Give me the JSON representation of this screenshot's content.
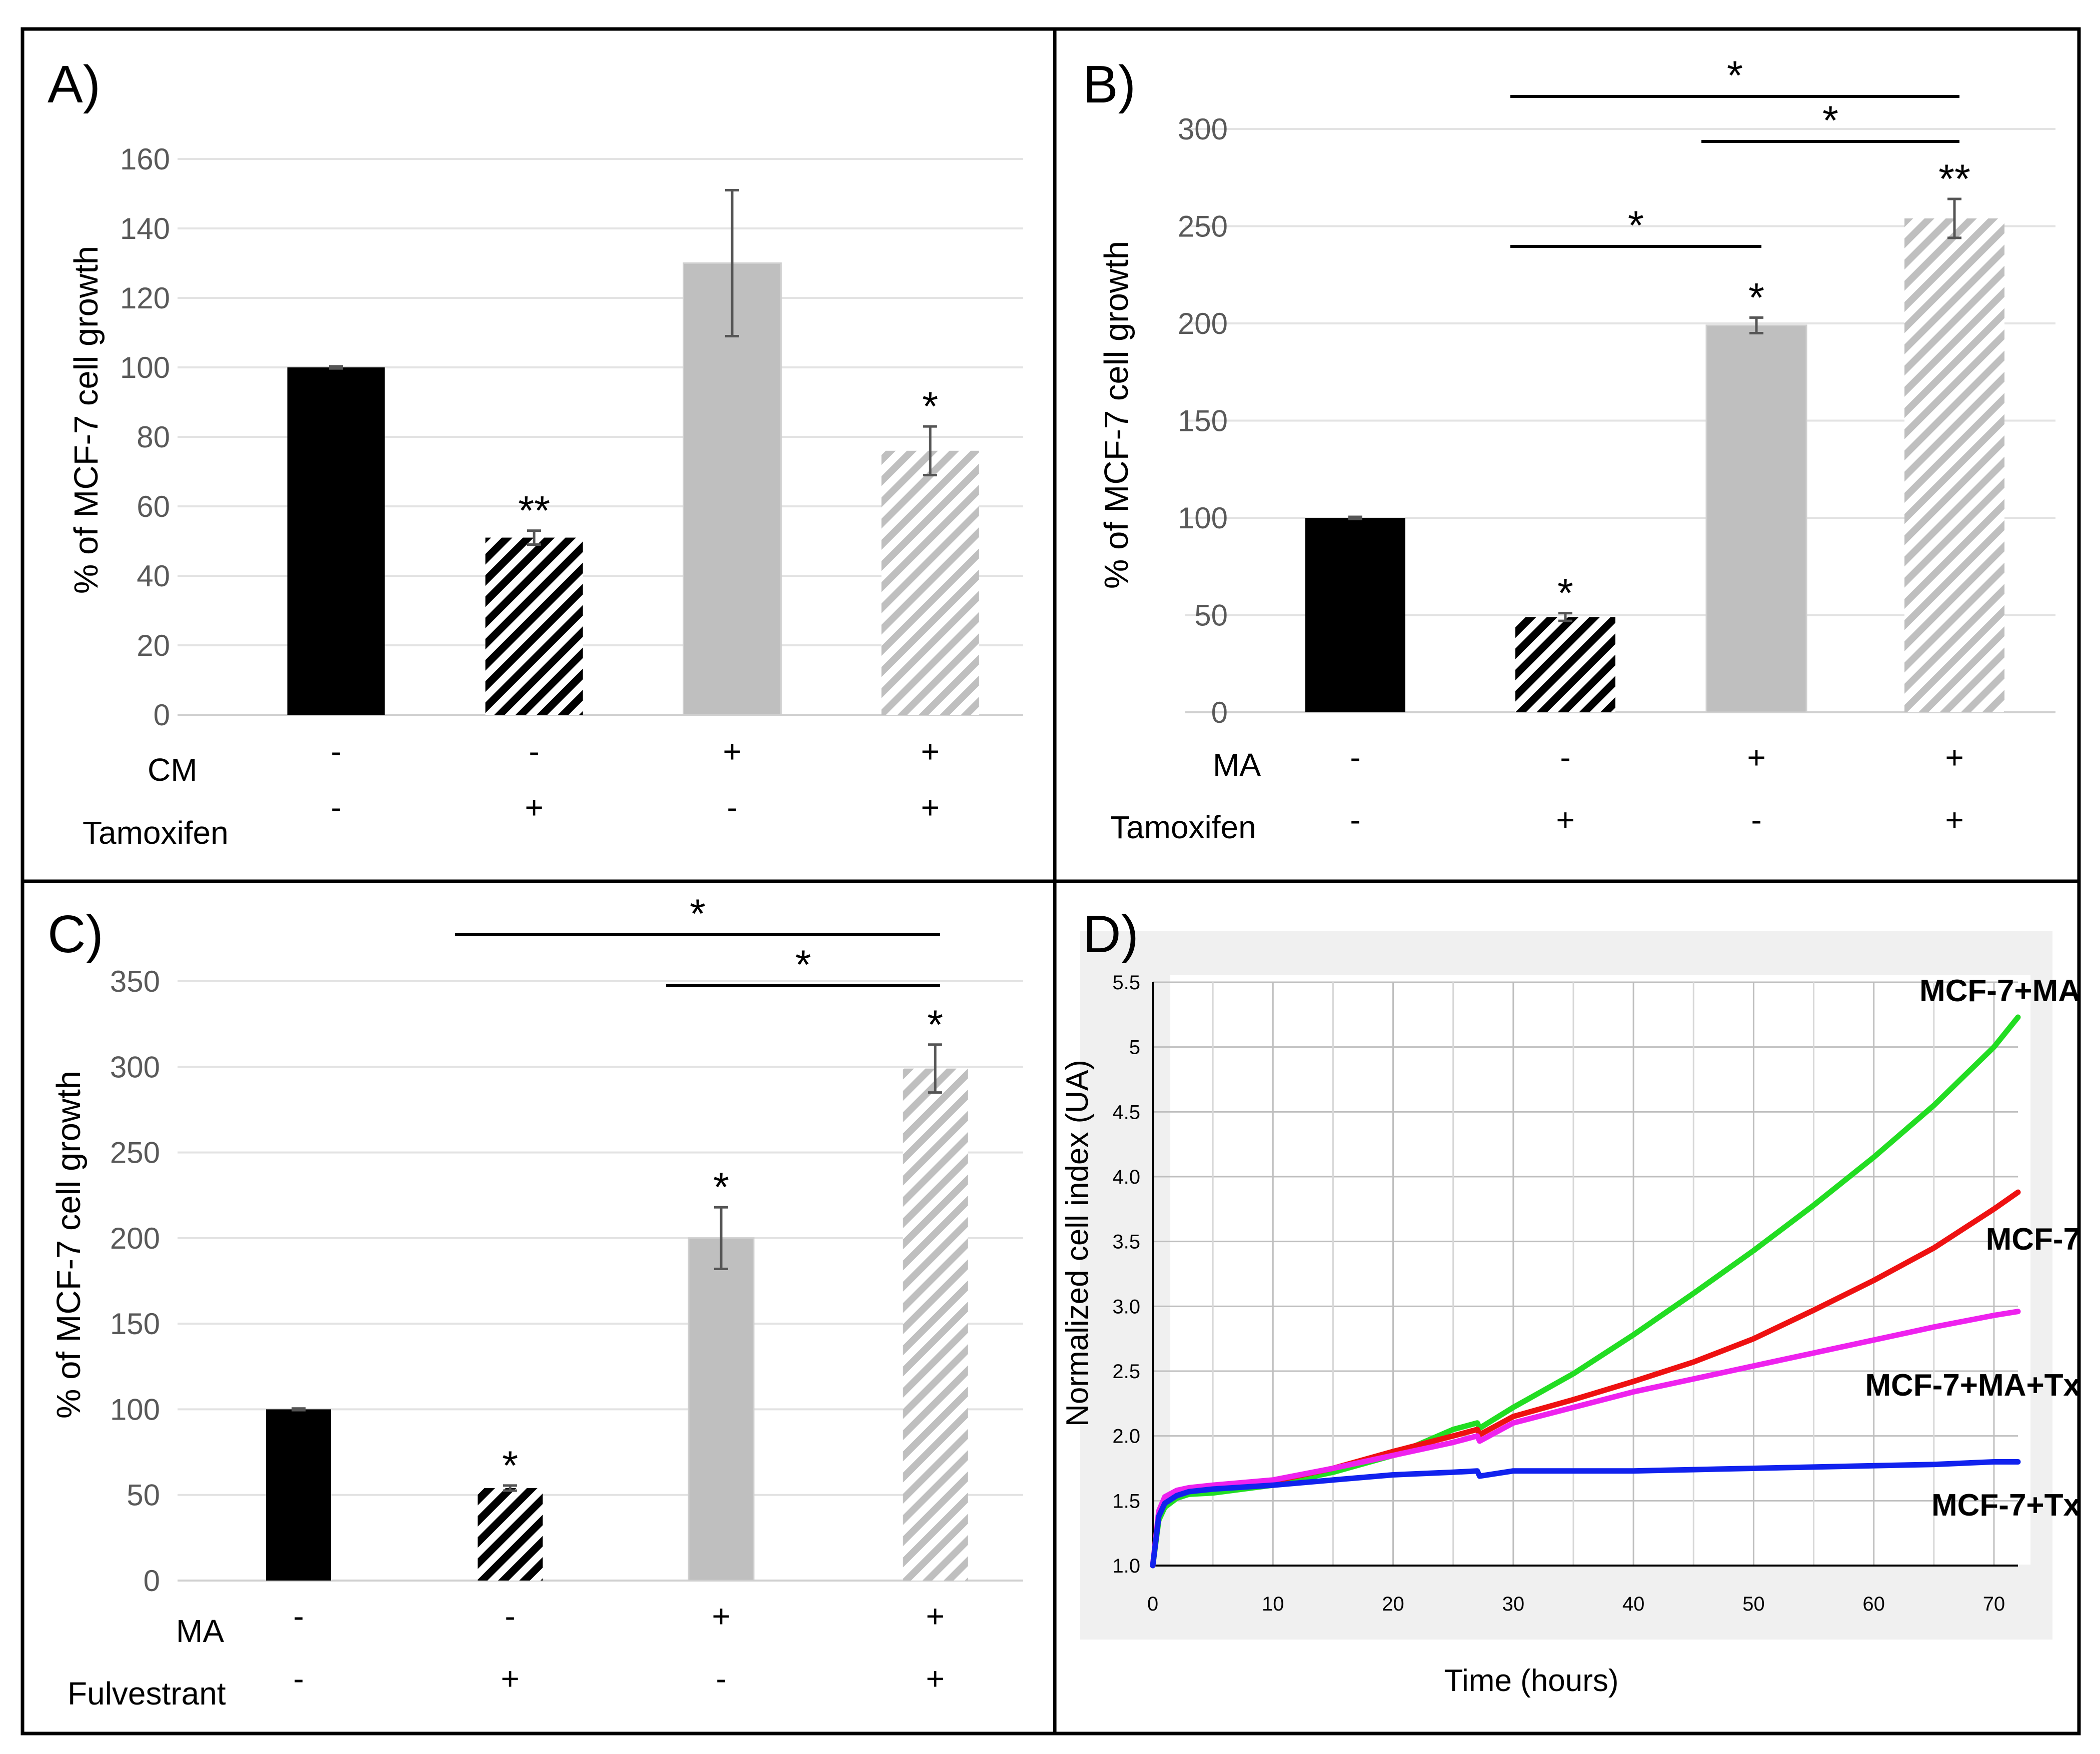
{
  "chart_data": [
    {
      "panel": "A)",
      "type": "bar",
      "ylabel": "% of MCF-7 cell growth",
      "ylim": [
        0,
        160
      ],
      "yticks": [
        0,
        20,
        40,
        60,
        80,
        100,
        120,
        140,
        160
      ],
      "grid": true,
      "bars": [
        {
          "value": 100,
          "error": 0.3,
          "style": "solid-black",
          "sig": ""
        },
        {
          "value": 51,
          "error": 2,
          "style": "hatch-black",
          "sig": "**"
        },
        {
          "value": 130,
          "error": 21,
          "style": "solid-gray",
          "sig": ""
        },
        {
          "value": 76,
          "error": 7,
          "style": "hatch-gray",
          "sig": "*"
        }
      ],
      "rows": [
        {
          "label": "CM",
          "signs": [
            "-",
            "-",
            "+",
            "+"
          ]
        },
        {
          "label": "Tamoxifen",
          "signs": [
            "-",
            "+",
            "-",
            "+"
          ]
        }
      ],
      "brackets": []
    },
    {
      "panel": "B)",
      "type": "bar",
      "ylabel": "% of MCF-7 cell growth",
      "ylim": [
        0,
        300
      ],
      "yticks": [
        0,
        50,
        100,
        150,
        200,
        250,
        300
      ],
      "grid": true,
      "bars": [
        {
          "value": 100,
          "error": 0.5,
          "style": "solid-black",
          "sig": ""
        },
        {
          "value": 49,
          "error": 2,
          "style": "hatch-black",
          "sig": "*"
        },
        {
          "value": 199,
          "error": 4,
          "style": "solid-gray",
          "sig": "*"
        },
        {
          "value": 254,
          "error": 10,
          "style": "hatch-gray",
          "sig": "**"
        }
      ],
      "rows": [
        {
          "label": "MA",
          "signs": [
            "-",
            "-",
            "+",
            "+"
          ]
        },
        {
          "label": "Tamoxifen",
          "signs": [
            "-",
            "+",
            "-",
            "+"
          ]
        }
      ],
      "brackets": [
        {
          "from": 1,
          "to": 3,
          "label": "*"
        },
        {
          "from": 2,
          "to": 3,
          "label": "*"
        },
        {
          "from": 1,
          "to": 2,
          "label": "*"
        }
      ]
    },
    {
      "panel": "C)",
      "type": "bar",
      "ylabel": "% of MCF-7 cell growth",
      "ylim": [
        0,
        350
      ],
      "yticks": [
        0,
        50,
        100,
        150,
        200,
        250,
        300,
        350
      ],
      "grid": true,
      "bars": [
        {
          "value": 100,
          "error": 0.5,
          "style": "solid-black",
          "sig": ""
        },
        {
          "value": 54,
          "error": 1.5,
          "style": "hatch-black",
          "sig": "*"
        },
        {
          "value": 200,
          "error": 18,
          "style": "solid-gray",
          "sig": "*"
        },
        {
          "value": 299,
          "error": 14,
          "style": "hatch-gray",
          "sig": "*"
        }
      ],
      "rows": [
        {
          "label": "MA",
          "signs": [
            "-",
            "-",
            "+",
            "+"
          ]
        },
        {
          "label": "Fulvestrant",
          "signs": [
            "-",
            "+",
            "-",
            "+"
          ]
        }
      ],
      "brackets": [
        {
          "from": 1,
          "to": 3,
          "label": "*"
        },
        {
          "from": 2,
          "to": 3,
          "label": "*"
        }
      ]
    },
    {
      "panel": "D)",
      "type": "line",
      "xlabel": "Time (hours)",
      "ylabel": "Normalized cell index (UA)",
      "xlim": [
        0,
        72
      ],
      "ylim": [
        1.0,
        5.5
      ],
      "xticks": [
        "0",
        "10",
        "20",
        "30",
        "40",
        "50",
        "60",
        "70"
      ],
      "yticks": [
        "1.0",
        "1.5",
        "2.0",
        "2.5",
        "3.0",
        "3.5",
        "4.0",
        "4.5",
        "5",
        "5.5"
      ],
      "grid": true,
      "series": [
        {
          "name": "MCF-7+MA",
          "color": "#22dd22",
          "x": [
            0,
            0.5,
            1,
            2,
            3,
            5,
            10,
            15,
            20,
            25,
            27,
            27.2,
            30,
            35,
            40,
            45,
            50,
            55,
            60,
            65,
            70,
            72
          ],
          "y": [
            1.0,
            1.35,
            1.45,
            1.52,
            1.55,
            1.56,
            1.62,
            1.72,
            1.85,
            2.05,
            2.1,
            2.06,
            2.22,
            2.48,
            2.78,
            3.1,
            3.43,
            3.78,
            4.15,
            4.55,
            5.0,
            5.23
          ]
        },
        {
          "name": "MCF-7",
          "color": "#ee1111",
          "x": [
            0,
            0.5,
            1,
            2,
            3,
            5,
            10,
            15,
            20,
            25,
            27,
            27.2,
            30,
            35,
            40,
            45,
            50,
            55,
            60,
            65,
            70,
            72
          ],
          "y": [
            1.0,
            1.4,
            1.5,
            1.56,
            1.58,
            1.6,
            1.65,
            1.75,
            1.88,
            2.0,
            2.05,
            2.01,
            2.15,
            2.28,
            2.42,
            2.57,
            2.75,
            2.97,
            3.2,
            3.45,
            3.75,
            3.88
          ]
        },
        {
          "name": "MCF-7+MA+Tx",
          "color": "#ee22ee",
          "x": [
            0,
            0.5,
            1,
            2,
            3,
            5,
            10,
            15,
            20,
            25,
            27,
            27.2,
            30,
            35,
            40,
            45,
            50,
            55,
            60,
            65,
            70,
            72
          ],
          "y": [
            1.0,
            1.42,
            1.53,
            1.58,
            1.6,
            1.62,
            1.66,
            1.75,
            1.85,
            1.95,
            2.0,
            1.96,
            2.1,
            2.22,
            2.34,
            2.44,
            2.54,
            2.64,
            2.74,
            2.84,
            2.93,
            2.96
          ]
        },
        {
          "name": "MCF-7+Tx",
          "color": "#1122ee",
          "x": [
            0,
            0.5,
            1,
            2,
            3,
            5,
            10,
            15,
            20,
            25,
            27,
            27.2,
            30,
            35,
            40,
            45,
            50,
            55,
            60,
            65,
            70,
            72
          ],
          "y": [
            1.0,
            1.38,
            1.48,
            1.54,
            1.57,
            1.59,
            1.62,
            1.66,
            1.7,
            1.72,
            1.73,
            1.69,
            1.73,
            1.73,
            1.73,
            1.74,
            1.75,
            1.76,
            1.77,
            1.78,
            1.8,
            1.8
          ]
        }
      ]
    }
  ]
}
